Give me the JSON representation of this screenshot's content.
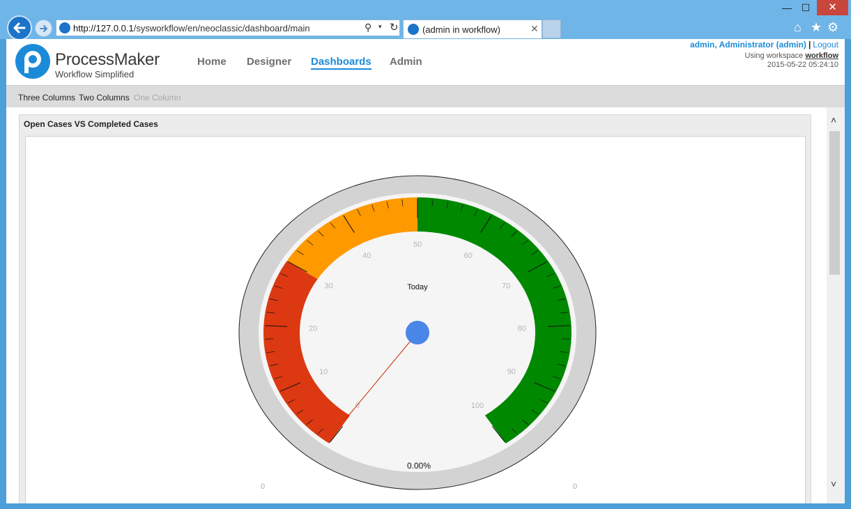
{
  "browser": {
    "address_host": "http://127.0.0.1",
    "address_path": "/sysworkflow/en/neoclassic/dashboard/main",
    "tab_title": "(admin in workflow)",
    "window_min": "—",
    "window_max": "☐",
    "window_close": "✕",
    "search_glyph": "⚲",
    "dropdown_glyph": "▾",
    "refresh_glyph": "↻",
    "tab_close_glyph": "✕",
    "tool_icons": [
      "home-icon",
      "star-icon",
      "gear-icon"
    ],
    "tool_glyphs": [
      "⌂",
      "★",
      "⚙"
    ]
  },
  "header": {
    "logo_name": "ProcessMaker",
    "logo_tagline": "Workflow Simplified",
    "menu": [
      "Home",
      "Designer",
      "Dashboards",
      "Admin"
    ],
    "active_menu": "Dashboards",
    "user_name": "admin, Administrator (admin)",
    "separator": "|",
    "logout": "Logout",
    "workspace_prefix": "Using workspace",
    "workspace": "workflow",
    "datetime": "2015-05-22 05:24:10"
  },
  "subbar": {
    "items": [
      "Three Columns",
      "Two Columns",
      "One Column"
    ],
    "disabled": "One Column"
  },
  "panel": {
    "title": "Open Cases VS Completed Cases"
  },
  "gauge": {
    "label": "Today",
    "value_text": "0.00%",
    "value": 0,
    "min": 0,
    "max": 100,
    "ticks": [
      "0",
      "10",
      "20",
      "30",
      "40",
      "50",
      "60",
      "70",
      "80",
      "90",
      "100"
    ],
    "bands": [
      {
        "from": 0,
        "to": 30,
        "color": "#dc3912"
      },
      {
        "from": 30,
        "to": 50,
        "color": "#ff9900"
      },
      {
        "from": 50,
        "to": 100,
        "color": "#008800"
      }
    ],
    "needle_color": "#cc2200",
    "hub_color": "#4a86e8",
    "footer_left": "0",
    "footer_right": "0"
  },
  "scroll": {
    "up": "˄",
    "down": "˅"
  }
}
